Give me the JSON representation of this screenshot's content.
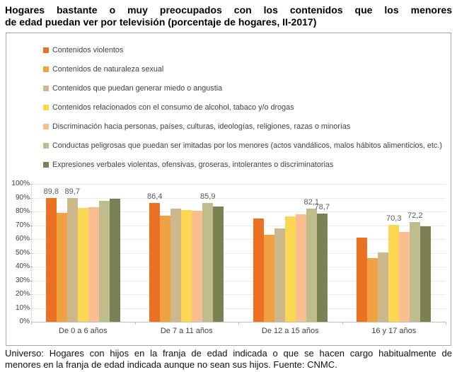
{
  "title": {
    "line1": "Hogares bastante o muy preocupados con los contenidos que los menores",
    "line2": "de edad puedan ver por televisión (porcentaje de hogares, II-2017)"
  },
  "footer": {
    "line1": "Universo: Hogares con hijos en la franja de edad indicada o que se hacen cargo habitualmente de",
    "line2": "menores en la franja de edad indicada aunque no sean sus hijos. Fuente: CNMC."
  },
  "chart_data": {
    "type": "bar",
    "title": "Hogares bastante o muy preocupados con los contenidos que los menores de edad puedan ver por televisión (porcentaje de hogares, II-2017)",
    "categories": [
      "De 0 a 6 años",
      "De 7 a 11 años",
      "De 12 a 15 años",
      "16 y 17 años"
    ],
    "series": [
      {
        "name": "Contenidos violentos",
        "color": "#ec7123",
        "values": [
          89.8,
          86.4,
          74.8,
          61.2
        ]
      },
      {
        "name": "Contenidos de naturaleza sexual",
        "color": "#f0a243",
        "values": [
          79.0,
          76.9,
          63.2,
          46.3
        ]
      },
      {
        "name": "Contenidos que puedan generar miedo o angustia",
        "color": "#cdb78c",
        "values": [
          89.7,
          81.9,
          67.7,
          50.2
        ]
      },
      {
        "name": "Contenidos relacionados con el consumo de alcohol, tabaco y/o drogas",
        "color": "#fcd751",
        "values": [
          82.4,
          81.0,
          76.4,
          70.3
        ]
      },
      {
        "name": "Discriminación hacia personas, países, culturas, ideologías, religiones, razas o minorías",
        "color": "#f9bd90",
        "values": [
          82.9,
          80.3,
          77.9,
          65.3
        ]
      },
      {
        "name": "Conductas peligrosas que puedan ser imitadas por los menores (actos vandálicos, malos hábitos alimenticios, etc.)",
        "color": "#bfbd8d",
        "values": [
          87.9,
          85.9,
          82.1,
          72.2
        ]
      },
      {
        "name": "Expresiones verbales violentas, ofensivas, groseras, intolerantes o discriminatorias",
        "color": "#7a8153",
        "values": [
          89.0,
          83.4,
          78.7,
          69.1
        ]
      }
    ],
    "data_labels": [
      {
        "category": 0,
        "series": 0,
        "text": "89,8"
      },
      {
        "category": 0,
        "series": 2,
        "text": "89,7"
      },
      {
        "category": 1,
        "series": 0,
        "text": "86,4"
      },
      {
        "category": 1,
        "series": 5,
        "text": "85,9"
      },
      {
        "category": 2,
        "series": 5,
        "text": "82,1"
      },
      {
        "category": 2,
        "series": 6,
        "text": "78,7"
      },
      {
        "category": 3,
        "series": 3,
        "text": "70,3"
      },
      {
        "category": 3,
        "series": 5,
        "text": "72,2"
      }
    ],
    "y_axis": {
      "min": 0,
      "max": 100,
      "step": 10,
      "ticks": [
        "0%",
        "10%",
        "20%",
        "30%",
        "40%",
        "50%",
        "60%",
        "70%",
        "80%",
        "90%",
        "100%"
      ]
    },
    "xlabel": "",
    "ylabel": "",
    "grid": true,
    "legend_position": "top"
  }
}
